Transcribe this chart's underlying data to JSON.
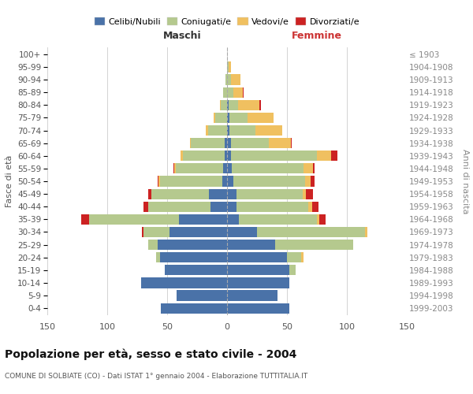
{
  "age_groups": [
    "0-4",
    "5-9",
    "10-14",
    "15-19",
    "20-24",
    "25-29",
    "30-34",
    "35-39",
    "40-44",
    "45-49",
    "50-54",
    "55-59",
    "60-64",
    "65-69",
    "70-74",
    "75-79",
    "80-84",
    "85-89",
    "90-94",
    "95-99",
    "100+"
  ],
  "birth_years": [
    "1999-2003",
    "1994-1998",
    "1989-1993",
    "1984-1988",
    "1979-1983",
    "1974-1978",
    "1969-1973",
    "1964-1968",
    "1959-1963",
    "1954-1958",
    "1949-1953",
    "1944-1948",
    "1939-1943",
    "1934-1938",
    "1929-1933",
    "1924-1928",
    "1919-1923",
    "1914-1918",
    "1909-1913",
    "1904-1908",
    "≤ 1903"
  ],
  "males": {
    "celibi": [
      55,
      42,
      72,
      52,
      56,
      58,
      48,
      40,
      14,
      15,
      4,
      3,
      2,
      2,
      0,
      0,
      0,
      0,
      0,
      0,
      0
    ],
    "coniugati": [
      0,
      0,
      0,
      0,
      3,
      8,
      22,
      75,
      52,
      48,
      52,
      40,
      35,
      28,
      16,
      10,
      5,
      3,
      1,
      0,
      0
    ],
    "vedovi": [
      0,
      0,
      0,
      0,
      0,
      0,
      0,
      0,
      0,
      0,
      1,
      1,
      2,
      1,
      2,
      1,
      1,
      0,
      0,
      0,
      0
    ],
    "divorziati": [
      0,
      0,
      0,
      0,
      0,
      0,
      1,
      7,
      4,
      3,
      1,
      1,
      0,
      0,
      0,
      0,
      0,
      0,
      0,
      0,
      0
    ]
  },
  "females": {
    "nubili": [
      52,
      42,
      52,
      52,
      50,
      40,
      25,
      10,
      8,
      8,
      5,
      4,
      3,
      3,
      2,
      2,
      1,
      0,
      0,
      0,
      0
    ],
    "coniugate": [
      0,
      0,
      0,
      5,
      12,
      65,
      90,
      65,
      60,
      55,
      60,
      60,
      72,
      32,
      22,
      15,
      8,
      5,
      3,
      1,
      0
    ],
    "vedove": [
      0,
      0,
      0,
      0,
      2,
      0,
      2,
      2,
      3,
      3,
      5,
      8,
      12,
      18,
      22,
      22,
      18,
      8,
      8,
      2,
      0
    ],
    "divorziate": [
      0,
      0,
      0,
      0,
      0,
      0,
      0,
      5,
      5,
      6,
      3,
      1,
      5,
      1,
      0,
      0,
      1,
      1,
      0,
      0,
      0
    ]
  },
  "colors": {
    "celibi": "#4a72a8",
    "coniugati": "#b5c98e",
    "vedovi": "#f0c060",
    "divorziati": "#cc2222"
  },
  "title": "Popolazione per età, sesso e stato civile - 2004",
  "subtitle": "COMUNE DI SOLBIATE (CO) - Dati ISTAT 1° gennaio 2004 - Elaborazione TUTTITALIA.IT",
  "xlabel_left": "Maschi",
  "xlabel_right": "Femmine",
  "ylabel_left": "Fasce di età",
  "ylabel_right": "Anni di nascita",
  "xlim": 150,
  "legend_labels": [
    "Celibi/Nubili",
    "Coniugati/e",
    "Vedovi/e",
    "Divorziati/e"
  ]
}
